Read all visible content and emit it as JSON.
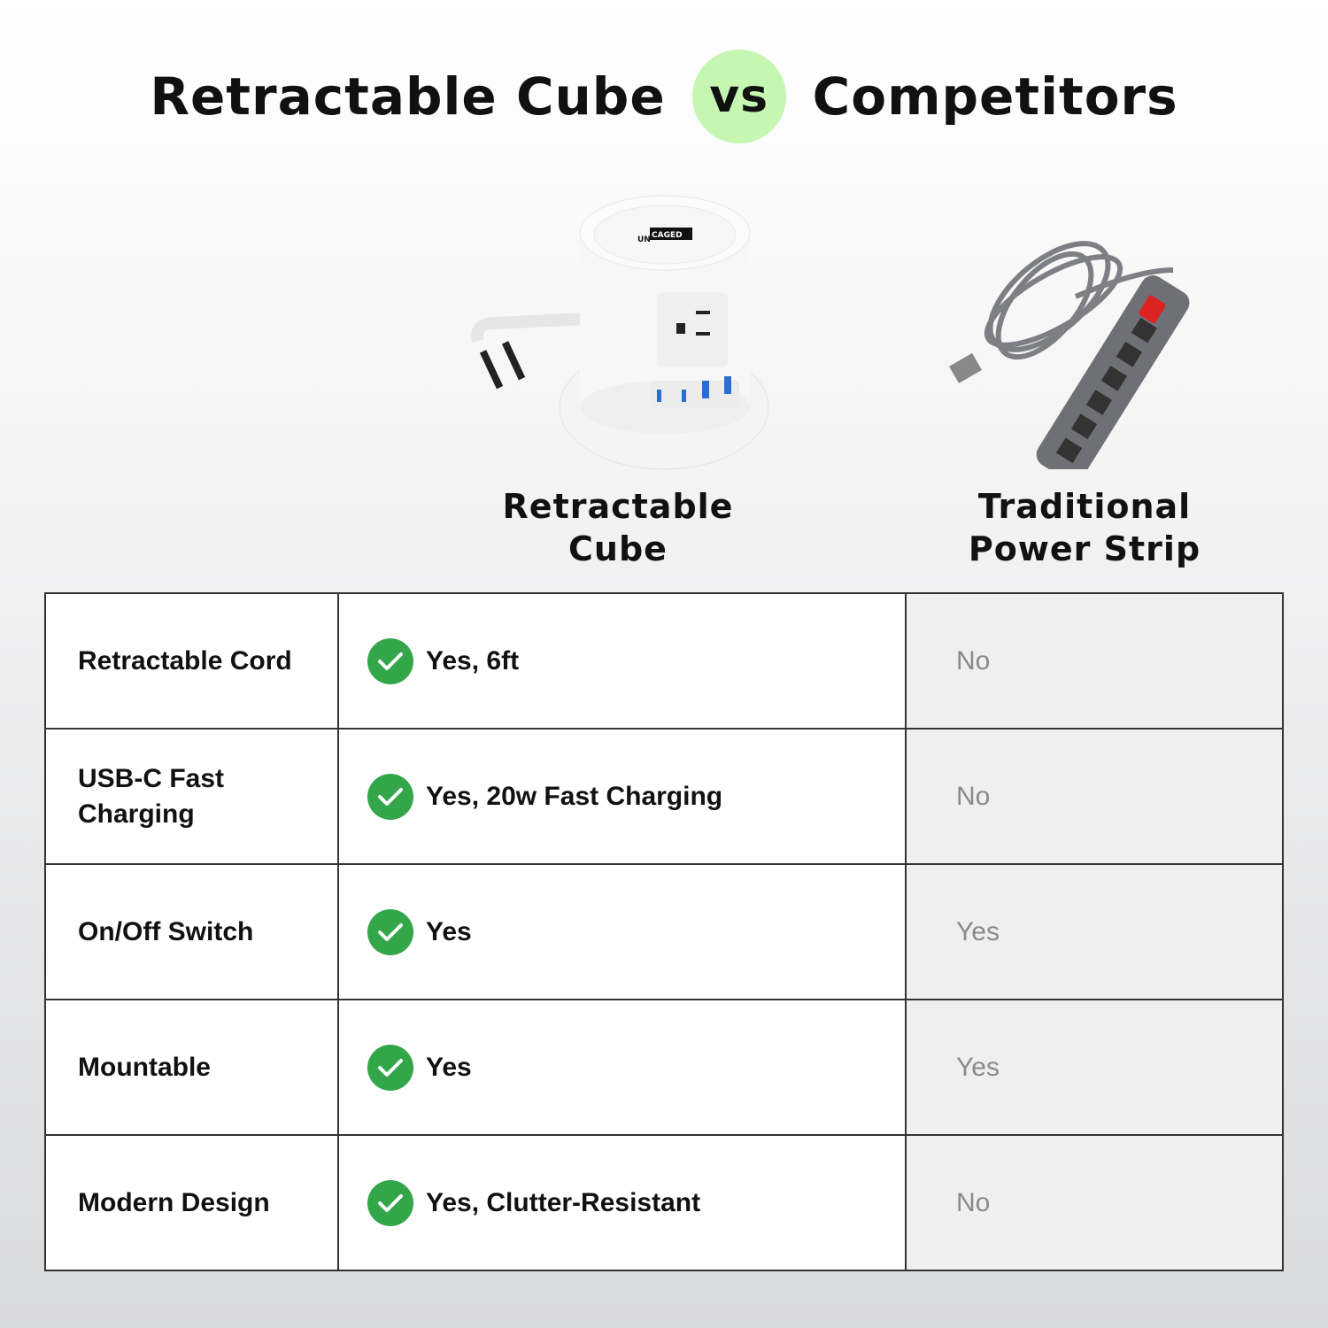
{
  "header": {
    "left": "Retractable Cube",
    "vs": "vs",
    "right": "Competitors"
  },
  "products": [
    {
      "label_line1": "Retractable",
      "label_line2": "Cube",
      "logo": "UNCAGED ERGONOMICS"
    },
    {
      "label_line1": "Traditional",
      "label_line2": "Power Strip"
    }
  ],
  "colors": {
    "check": "#34a64a",
    "vs_badge": "#c5f7b3",
    "competitor_bg": "#efefef"
  },
  "rows": [
    {
      "feature": "Retractable Cord",
      "cube": "Yes, 6ft",
      "competitor": "No"
    },
    {
      "feature": "USB-C Fast Charging",
      "cube": "Yes, 20w Fast Charging",
      "competitor": "No"
    },
    {
      "feature": "On/Off Switch",
      "cube": "Yes",
      "competitor": "Yes"
    },
    {
      "feature": "Mountable",
      "cube": "Yes",
      "competitor": "Yes"
    },
    {
      "feature": "Modern Design",
      "cube": "Yes, Clutter-Resistant",
      "competitor": "No"
    }
  ]
}
